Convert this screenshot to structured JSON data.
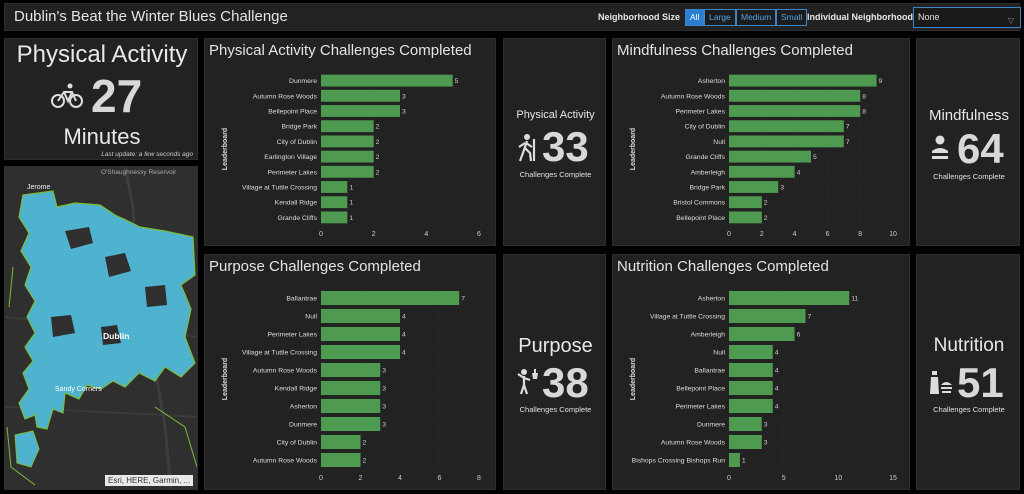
{
  "header": {
    "title": "Dublin's Beat the Winter Blues Challenge",
    "size_label": "Neighborhood Size",
    "size_options": [
      "All",
      "Large",
      "Medium",
      "Small"
    ],
    "size_selected": "All",
    "neighborhood_label": "Individual Neighborhood",
    "neighborhood_value": "None"
  },
  "pa_card": {
    "title": "Physical Activity",
    "value": "27",
    "unit": "Minutes",
    "update": "Last update: a few seconds ago",
    "icon": "bicycle-icon"
  },
  "map": {
    "labels": [
      "Jerome",
      "O'Shaughnessy Reservoir",
      "Dublin",
      "Sandy Corners"
    ],
    "attribution": "Esri, HERE, Garmin, ..."
  },
  "indicators": {
    "pa": {
      "title": "Physical Activity",
      "value": "33",
      "caption": "Challenges Complete",
      "icon": "hiking-icon"
    },
    "mind": {
      "title": "Mindfulness",
      "value": "64",
      "caption": "Challenges Complete",
      "icon": "meditation-icon"
    },
    "purpose": {
      "title": "Purpose",
      "value": "38",
      "caption": "Challenges Complete",
      "icon": "volunteer-icon"
    },
    "nutrition": {
      "title": "Nutrition",
      "value": "51",
      "caption": "Challenges Complete",
      "icon": "food-icon"
    }
  },
  "colors": {
    "bar": "#4e9a51",
    "panel": "#222222",
    "accent": "#2a7fd3",
    "map_area": "#4fb3cf",
    "map_border": "#7dbb3a"
  },
  "chart_data": [
    {
      "type": "bar",
      "orientation": "horizontal",
      "title": "Physical Activity Challenges Completed",
      "ylabel": "Leaderboard",
      "categories": [
        "Dunmere",
        "Autumn Rose Woods",
        "Bellepoint Place",
        "Bridge Park",
        "City of Dublin",
        "Earlington Village",
        "Perimeter Lakes",
        "Village at Tuttle Crossing",
        "Kendall Ridge",
        "Grande Cliffs"
      ],
      "values": [
        5,
        3,
        3,
        2,
        2,
        2,
        2,
        1,
        1,
        1
      ],
      "xlim": [
        0,
        6
      ],
      "xticks": [
        0,
        2,
        4,
        6
      ]
    },
    {
      "type": "bar",
      "orientation": "horizontal",
      "title": "Mindfulness Challenges Completed",
      "ylabel": "Leaderboard",
      "categories": [
        "Asherton",
        "Autumn Rose Woods",
        "Perimeter Lakes",
        "City of Dublin",
        "Null",
        "Grande Cliffs",
        "Amberleigh",
        "Bridge Park",
        "Bristol Commons",
        "Bellepoint Place"
      ],
      "values": [
        9,
        8,
        8,
        7,
        7,
        5,
        4,
        3,
        2,
        2
      ],
      "xlim": [
        0,
        10
      ],
      "xticks": [
        0,
        2,
        4,
        6,
        8,
        10
      ]
    },
    {
      "type": "bar",
      "orientation": "horizontal",
      "title": "Purpose Challenges Completed",
      "ylabel": "Leaderboard",
      "categories": [
        "Ballantrae",
        "Null",
        "Perimeter Lakes",
        "Village at Tuttle Crossing",
        "Autumn Rose Woods",
        "Kendall Ridge",
        "Asherton",
        "Dunmere",
        "City of Dublin",
        "Autumn Rose Woods"
      ],
      "values": [
        7,
        4,
        4,
        4,
        3,
        3,
        3,
        3,
        2,
        2
      ],
      "xlim": [
        0,
        8
      ],
      "xticks": [
        0,
        2,
        4,
        6,
        8
      ]
    },
    {
      "type": "bar",
      "orientation": "horizontal",
      "title": "Nutrition Challenges Completed",
      "ylabel": "Leaderboard",
      "categories": [
        "Asherton",
        "Village at Tuttle Crossing",
        "Amberleigh",
        "Null",
        "Ballantrae",
        "Bellepoint Place",
        "Perimeter Lakes",
        "Dunmere",
        "Autumn Rose Woods",
        "Bishops Crossing Bishops Run"
      ],
      "values": [
        11,
        7,
        6,
        4,
        4,
        4,
        4,
        3,
        3,
        1
      ],
      "xlim": [
        0,
        15
      ],
      "xticks": [
        0,
        5,
        10,
        15
      ]
    }
  ]
}
